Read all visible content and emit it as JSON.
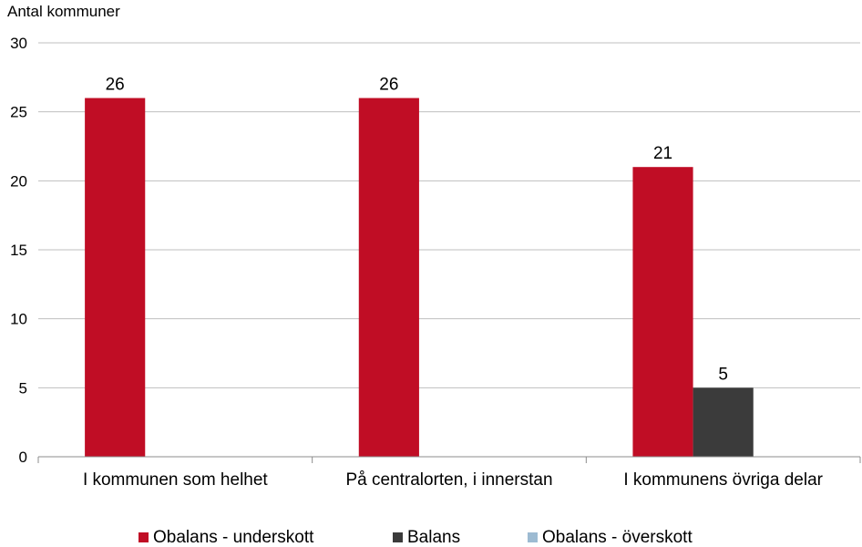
{
  "chart_data": {
    "type": "bar",
    "ylabel": "Antal kommuner",
    "ylim": [
      0,
      30
    ],
    "yticks": [
      0,
      5,
      10,
      15,
      20,
      25,
      30
    ],
    "grid": true,
    "legend_position": "bottom",
    "categories": [
      "I kommunen som helhet",
      "På centralorten, i innerstan",
      "I kommunens övriga delar"
    ],
    "series": [
      {
        "name": "Obalans - underskott",
        "color": "#c00d25",
        "values": [
          26,
          26,
          21
        ]
      },
      {
        "name": "Balans",
        "color": "#3b3b3b",
        "values": [
          0,
          0,
          5
        ]
      },
      {
        "name": "Obalans - överskott",
        "color": "#9dbbd2",
        "values": [
          0,
          0,
          0
        ]
      }
    ],
    "data_labels": [
      [
        26,
        26,
        21
      ],
      [
        null,
        null,
        5
      ],
      [
        null,
        null,
        null
      ]
    ]
  }
}
